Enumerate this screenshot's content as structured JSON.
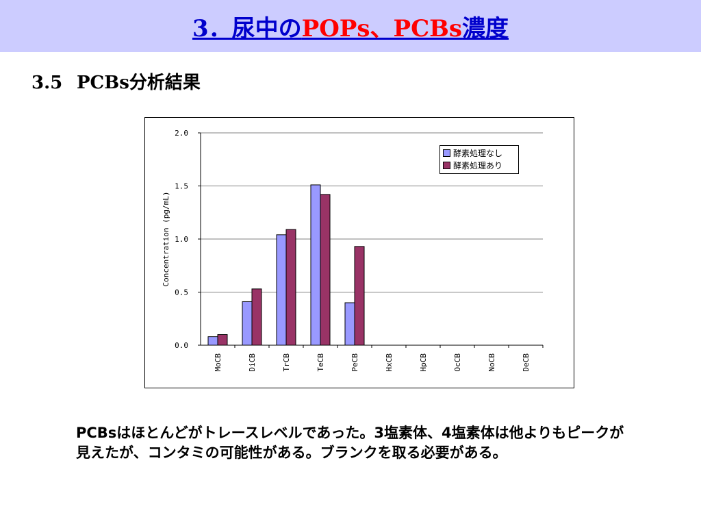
{
  "slide": {
    "title_prefix": "3．尿中の",
    "title_red": "POPs、PCBs",
    "title_suffix": "濃度",
    "section_number": "3.5",
    "section_title": "PCBs分析結果",
    "body_text": "PCBsはほとんどがトレースレベルであった。3塩素体、4塩素体は他よりもピークが見えたが、コンタミの可能性がある。ブランクを取る必要がある。",
    "colors": {
      "title_bar": "#ccccff",
      "title_text": "#0000cc",
      "title_red": "#ff0000"
    }
  },
  "chart_data": {
    "type": "bar",
    "categories": [
      "MoCB",
      "DiCB",
      "TrCB",
      "TeCB",
      "PeCB",
      "HxCB",
      "HpCB",
      "OcCB",
      "NoCB",
      "DeCB"
    ],
    "series": [
      {
        "name": "酵素処理なし",
        "color": "#9999ff",
        "values": [
          0.08,
          0.41,
          1.04,
          1.51,
          0.4,
          0,
          0,
          0,
          0,
          0
        ]
      },
      {
        "name": "酵素処理あり",
        "color": "#993366",
        "values": [
          0.1,
          0.53,
          1.09,
          1.42,
          0.93,
          0,
          0,
          0,
          0,
          0
        ]
      }
    ],
    "ylabel": "Concentration (pg/mL)",
    "ylim": [
      0,
      2.0
    ],
    "yticks": [
      "0.0",
      "0.5",
      "1.0",
      "1.5",
      "2.0"
    ],
    "grid": true,
    "legend_position": "top-right"
  }
}
